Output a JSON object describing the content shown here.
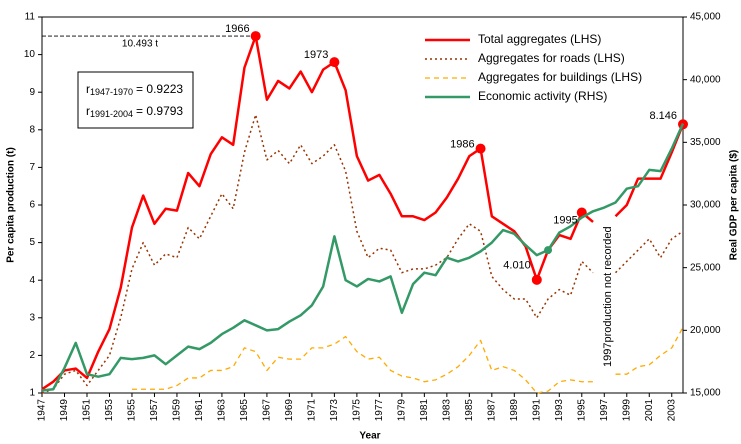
{
  "chart_data": {
    "type": "line",
    "x_label": "Year",
    "y_label": "Per capita production (t)",
    "y2_label": "Real GDP per capita ($)",
    "x": [
      1947,
      1948,
      1949,
      1950,
      1951,
      1952,
      1953,
      1954,
      1955,
      1956,
      1957,
      1958,
      1959,
      1960,
      1961,
      1962,
      1963,
      1964,
      1965,
      1966,
      1967,
      1968,
      1969,
      1970,
      1971,
      1972,
      1973,
      1974,
      1975,
      1976,
      1977,
      1978,
      1979,
      1980,
      1981,
      1982,
      1983,
      1984,
      1985,
      1986,
      1987,
      1988,
      1989,
      1990,
      1991,
      1992,
      1993,
      1994,
      1995,
      1996,
      1997,
      1998,
      1999,
      2000,
      2001,
      2002,
      2003,
      2004
    ],
    "xlim": [
      1947,
      2004
    ],
    "xticks": [
      1947,
      1949,
      1951,
      1953,
      1955,
      1957,
      1959,
      1961,
      1963,
      1965,
      1967,
      1969,
      1971,
      1973,
      1975,
      1977,
      1979,
      1981,
      1983,
      1985,
      1987,
      1989,
      1991,
      1993,
      1995,
      1997,
      1999,
      2001,
      2003
    ],
    "ylim": [
      1,
      11
    ],
    "yticks": [
      1,
      2,
      3,
      4,
      5,
      6,
      7,
      8,
      9,
      10,
      11
    ],
    "y2lim": [
      15000,
      45000
    ],
    "y2ticks": [
      {
        "value": 15000,
        "label": "15,000"
      },
      {
        "value": 20000,
        "label": "20,000"
      },
      {
        "value": 25000,
        "label": "25,000"
      },
      {
        "value": 30000,
        "label": "30,000"
      },
      {
        "value": 35000,
        "label": "35,000"
      },
      {
        "value": 40000,
        "label": "40,000"
      },
      {
        "value": 45000,
        "label": "45,000"
      }
    ],
    "legend": "upper right",
    "series": [
      {
        "name": "Total aggregates (LHS)",
        "color": "#ff0000",
        "style": "solid",
        "width": 2.5,
        "markers": [
          1966,
          1973,
          1986,
          1991,
          1995,
          2004
        ],
        "values": [
          1.1,
          1.3,
          1.6,
          1.65,
          1.4,
          2.1,
          2.7,
          3.8,
          5.4,
          6.25,
          5.5,
          5.9,
          5.85,
          6.85,
          6.5,
          7.35,
          7.8,
          7.6,
          9.65,
          10.493,
          8.8,
          9.3,
          9.1,
          9.55,
          9.0,
          9.6,
          9.8,
          9.05,
          7.3,
          6.65,
          6.8,
          6.3,
          5.7,
          5.7,
          5.6,
          5.8,
          6.2,
          6.7,
          7.3,
          7.5,
          5.7,
          5.5,
          5.3,
          4.9,
          4.01,
          4.8,
          5.2,
          5.1,
          5.8,
          5.55,
          null,
          5.7,
          6.0,
          6.7,
          6.7,
          6.7,
          7.4,
          8.146
        ]
      },
      {
        "name": "Aggregates for roads (LHS)",
        "color": "#993300",
        "style": "dotted",
        "width": 1.5,
        "values": [
          1.0,
          1.1,
          1.5,
          1.6,
          1.2,
          1.6,
          2.0,
          3.0,
          4.3,
          5.0,
          4.4,
          4.7,
          4.6,
          5.4,
          5.1,
          5.7,
          6.3,
          5.9,
          7.4,
          8.4,
          7.2,
          7.45,
          7.1,
          7.6,
          7.1,
          7.3,
          7.6,
          6.9,
          5.3,
          4.6,
          4.85,
          4.8,
          4.2,
          4.3,
          4.3,
          4.4,
          4.6,
          5.1,
          5.5,
          5.3,
          4.1,
          3.75,
          3.5,
          3.5,
          3.0,
          3.5,
          3.75,
          3.6,
          4.5,
          4.2,
          null,
          4.2,
          4.5,
          4.8,
          5.1,
          4.6,
          5.1,
          5.3
        ]
      },
      {
        "name": "Aggregates for buildings (LHS)",
        "color": "#ffaa00",
        "style": "dashed",
        "width": 1.3,
        "values": [
          null,
          null,
          null,
          null,
          null,
          null,
          null,
          null,
          1.1,
          1.1,
          1.1,
          1.1,
          1.2,
          1.4,
          1.4,
          1.6,
          1.6,
          1.7,
          2.2,
          2.1,
          1.6,
          1.95,
          1.9,
          1.9,
          2.2,
          2.2,
          2.3,
          2.5,
          2.1,
          1.9,
          1.95,
          1.6,
          1.45,
          1.4,
          1.3,
          1.35,
          1.5,
          1.7,
          2.0,
          2.4,
          1.6,
          1.7,
          1.6,
          1.35,
          1.0,
          1.05,
          1.3,
          1.35,
          1.3,
          1.3,
          null,
          1.5,
          1.5,
          1.7,
          1.75,
          2.0,
          2.2,
          2.75
        ]
      },
      {
        "name": "Economic activity (RHS)",
        "color": "#339966",
        "style": "solid",
        "width": 2.5,
        "axis": "y2",
        "markers": [
          1992
        ],
        "values": [
          15200,
          15300,
          17000,
          19000,
          16500,
          16300,
          16500,
          17800,
          17700,
          17800,
          18000,
          17300,
          18000,
          18700,
          18500,
          19000,
          19700,
          20200,
          20800,
          20400,
          20000,
          20100,
          20700,
          21200,
          22000,
          23500,
          27500,
          24000,
          23500,
          24100,
          23900,
          24300,
          21400,
          23700,
          24600,
          24400,
          25800,
          25500,
          25800,
          26300,
          27000,
          28000,
          27700,
          26800,
          26000,
          26400,
          27800,
          28300,
          29000,
          29500,
          29800,
          30200,
          31300,
          31500,
          32800,
          32700,
          34500,
          36500
        ]
      }
    ],
    "annotations": [
      {
        "text": "1966",
        "x": 1966
      },
      {
        "text": "1973",
        "x": 1973
      },
      {
        "text": "1986",
        "x": 1986
      },
      {
        "text": "1995",
        "x": 1995
      },
      {
        "text": "4.010",
        "x": 1991
      },
      {
        "text": "8.146",
        "x": 2004
      }
    ],
    "reference": {
      "text": "10.493 t",
      "x": 1966
    },
    "note": {
      "text": "1997production not recorded",
      "x": 1997
    },
    "correlations": [
      {
        "symbol": "r",
        "subscript": "1947-1970",
        "value": "= 0.9223"
      },
      {
        "symbol": "r",
        "subscript": "1991-2004",
        "value": "= 0.9793"
      }
    ]
  }
}
